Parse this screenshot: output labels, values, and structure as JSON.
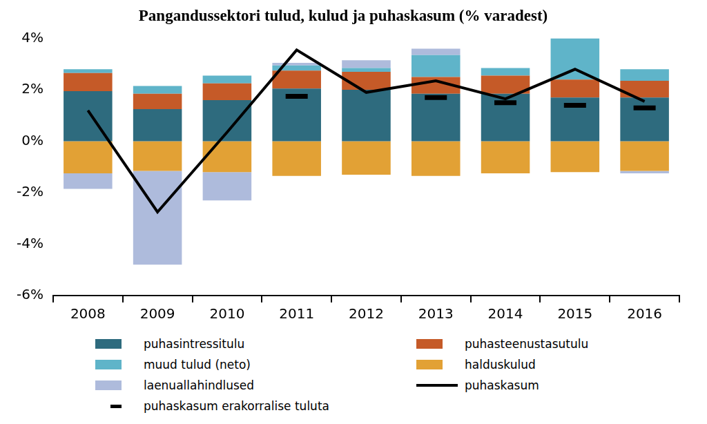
{
  "chart_data": {
    "type": "bar",
    "title": "Pangandussektori tulud, kulud ja puhaskasum (% varadest)",
    "categories": [
      "2008",
      "2009",
      "2010",
      "2011",
      "2012",
      "2013",
      "2014",
      "2015",
      "2016"
    ],
    "series": [
      {
        "name": "puhasintressitulu",
        "color": "#2e6b7e",
        "values": [
          1.95,
          1.25,
          1.6,
          2.05,
          2.0,
          1.85,
          1.85,
          1.7,
          1.7
        ]
      },
      {
        "name": "puhasteenustasutulu",
        "color": "#c55a28",
        "values": [
          0.7,
          0.6,
          0.65,
          0.7,
          0.7,
          0.65,
          0.7,
          0.7,
          0.65
        ]
      },
      {
        "name": "muud tulud (neto)",
        "color": "#5fb4c9",
        "values": [
          0.15,
          0.3,
          0.3,
          0.2,
          0.15,
          0.85,
          0.3,
          1.6,
          0.45
        ]
      },
      {
        "name": "halduskulud",
        "color": "#e2a135",
        "values": [
          -1.25,
          -1.15,
          -1.2,
          -1.35,
          -1.3,
          -1.35,
          -1.25,
          -1.2,
          -1.15
        ]
      },
      {
        "name": "laenuallahindlused",
        "color": "#aebbdc",
        "values": [
          -0.6,
          -3.65,
          -1.1,
          0.1,
          0.3,
          0.25,
          0,
          0,
          -0.1
        ]
      },
      {
        "name": "puhaskasum",
        "color": "#000000",
        "type": "line",
        "marker": "none",
        "line_style": "solid",
        "values": [
          1.2,
          -2.75,
          0.35,
          3.55,
          1.9,
          2.35,
          1.65,
          2.8,
          1.55
        ]
      },
      {
        "name": "puhaskasum erakorralise tuluta",
        "color": "#000000",
        "type": "line",
        "marker": "dash",
        "line_style": "none",
        "values": [
          null,
          null,
          null,
          1.75,
          null,
          1.7,
          1.5,
          1.4,
          1.3
        ]
      }
    ],
    "ylim": [
      -6,
      4
    ],
    "yticks": [
      {
        "value": -6,
        "label": "-6%"
      },
      {
        "value": -4,
        "label": "-4%"
      },
      {
        "value": -2,
        "label": "-2%"
      },
      {
        "value": 0,
        "label": "0%"
      },
      {
        "value": 2,
        "label": "2%"
      },
      {
        "value": 4,
        "label": "4%"
      }
    ],
    "grid": false,
    "stacked": true,
    "legend": "bottom"
  }
}
